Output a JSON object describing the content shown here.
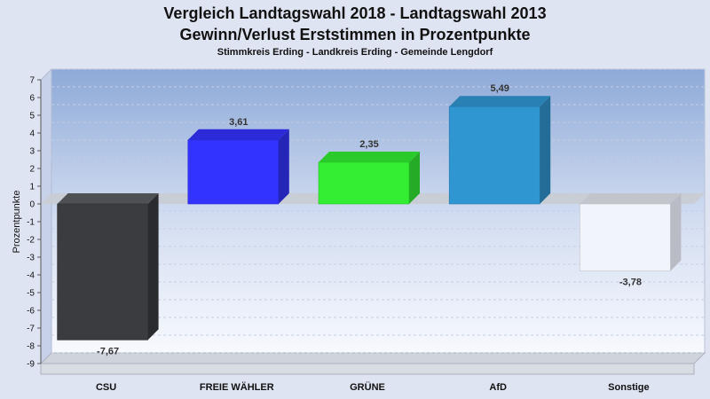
{
  "chart_data": {
    "type": "bar",
    "title": "Vergleich Landtagswahl 2018 - Landtagswahl 2013",
    "subtitle": "Gewinn/Verlust Erststimmen in Prozentpunkte",
    "caption": "Stimmkreis Erding - Landkreis Erding - Gemeinde Lengdorf",
    "xlabel": "",
    "ylabel": "Prozentpunkte",
    "ylim": [
      -9,
      7
    ],
    "yticks": [
      7,
      6,
      5,
      4,
      3,
      2,
      1,
      0,
      -1,
      -2,
      -3,
      -4,
      -5,
      -6,
      -7,
      -8,
      -9
    ],
    "grid": true,
    "categories": [
      "CSU",
      "FREIE WÄHLER",
      "GRÜNE",
      "AfD",
      "Sonstige"
    ],
    "values": [
      -7.67,
      3.61,
      2.35,
      5.49,
      -3.78
    ],
    "value_labels": [
      "-7,67",
      "3,61",
      "2,35",
      "5,49",
      "-3,78"
    ],
    "colors": [
      "#3a3c40",
      "#3333ff",
      "#33ee33",
      "#2f96d2",
      "#f2f4fb"
    ]
  }
}
